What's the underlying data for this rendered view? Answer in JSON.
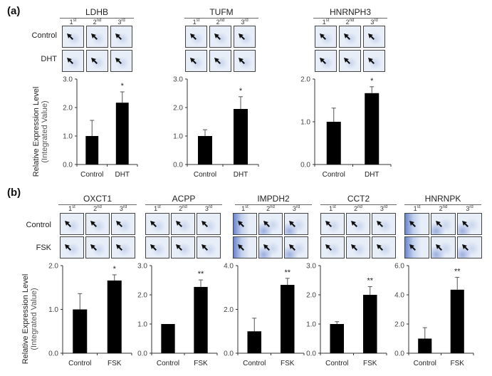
{
  "panels": [
    {
      "label": "(a)",
      "row_labels": [
        "Control",
        "DHT"
      ]
    },
    {
      "label": "(b)",
      "row_labels": [
        "Control",
        "FSK"
      ]
    }
  ],
  "replicate_labels": [
    {
      "base": "1",
      "sup": "st"
    },
    {
      "base": "2",
      "sup": "nd"
    },
    {
      "base": "3",
      "sup": "rd"
    }
  ],
  "y_axis_label": {
    "line1": "Relative Expression Level",
    "line2": "(Integrated Value)"
  },
  "colors": {
    "bar": "#000000",
    "error": "#555555",
    "axis": "#333333",
    "blot_bg": "#e8eef8",
    "blot_spot": "#8aa4d8",
    "blot_dark": "#2a4fb8"
  },
  "chart_data": [
    {
      "type": "bar",
      "panel": "(a)",
      "title": "LDHB",
      "categories": [
        "Control",
        "DHT"
      ],
      "values": [
        1.0,
        2.17
      ],
      "errors": [
        0.55,
        0.38
      ],
      "significance": [
        "",
        "*"
      ],
      "ylim": [
        0,
        3.0
      ],
      "yticks": [
        "0.0",
        "1.0",
        "2.0",
        "3.0"
      ],
      "ytick_values": [
        0,
        1,
        2,
        3
      ]
    },
    {
      "type": "bar",
      "panel": "(a)",
      "title": "TUFM",
      "categories": [
        "Control",
        "DHT"
      ],
      "values": [
        1.0,
        1.95
      ],
      "errors": [
        0.22,
        0.43
      ],
      "significance": [
        "",
        "*"
      ],
      "ylim": [
        0,
        3.0
      ],
      "yticks": [
        "0.0",
        "1.0",
        "2.0",
        "3.0"
      ],
      "ytick_values": [
        0,
        1,
        2,
        3
      ]
    },
    {
      "type": "bar",
      "panel": "(a)",
      "title": "HNRNPH3",
      "categories": [
        "Control",
        "DHT"
      ],
      "values": [
        1.0,
        1.67
      ],
      "errors": [
        0.32,
        0.15
      ],
      "significance": [
        "",
        "*"
      ],
      "ylim": [
        0,
        2.0
      ],
      "yticks": [
        "0.0",
        "1.0",
        "2.0"
      ],
      "ytick_values": [
        0,
        1,
        2
      ]
    },
    {
      "type": "bar",
      "panel": "(b)",
      "title": "OXCT1",
      "categories": [
        "Control",
        "FSK"
      ],
      "values": [
        1.0,
        1.66
      ],
      "errors": [
        0.36,
        0.13
      ],
      "significance": [
        "",
        "*"
      ],
      "ylim": [
        0,
        2.0
      ],
      "yticks": [
        "0.0",
        "1.0",
        "2.0"
      ],
      "ytick_values": [
        0,
        1,
        2
      ]
    },
    {
      "type": "bar",
      "panel": "(b)",
      "title": "ACPP",
      "categories": [
        "Control",
        "FSK"
      ],
      "values": [
        1.0,
        2.27
      ],
      "errors": [
        0,
        0.24
      ],
      "significance": [
        "",
        "**"
      ],
      "ylim": [
        0,
        3.0
      ],
      "yticks": [
        "0.0",
        "1.0",
        "2.0",
        "3.0"
      ],
      "ytick_values": [
        0,
        1,
        2,
        3
      ]
    },
    {
      "type": "bar",
      "panel": "(b)",
      "title": "IMPDH2",
      "categories": [
        "Control",
        "FSK"
      ],
      "values": [
        1.0,
        3.12
      ],
      "errors": [
        0.6,
        0.3
      ],
      "significance": [
        "",
        "**"
      ],
      "ylim": [
        0,
        4.0
      ],
      "yticks": [
        "0.0",
        "2.0",
        "4.0"
      ],
      "ytick_values": [
        0,
        2,
        4
      ]
    },
    {
      "type": "bar",
      "panel": "(b)",
      "title": "CCT2",
      "categories": [
        "Control",
        "FSK"
      ],
      "values": [
        1.0,
        2.0
      ],
      "errors": [
        0.08,
        0.28
      ],
      "significance": [
        "",
        "**"
      ],
      "ylim": [
        0,
        3.0
      ],
      "yticks": [
        "0.0",
        "1.0",
        "2.0",
        "3.0"
      ],
      "ytick_values": [
        0,
        1,
        2,
        3
      ]
    },
    {
      "type": "bar",
      "panel": "(b)",
      "title": "HNRNPK",
      "categories": [
        "Control",
        "FSK"
      ],
      "values": [
        1.0,
        4.35
      ],
      "errors": [
        0.75,
        0.85
      ],
      "significance": [
        "",
        "**"
      ],
      "ylim": [
        0,
        6.0
      ],
      "yticks": [
        "0.0",
        "2.0",
        "4.0",
        "6.0"
      ],
      "ytick_values": [
        0,
        2,
        4,
        6
      ]
    }
  ]
}
